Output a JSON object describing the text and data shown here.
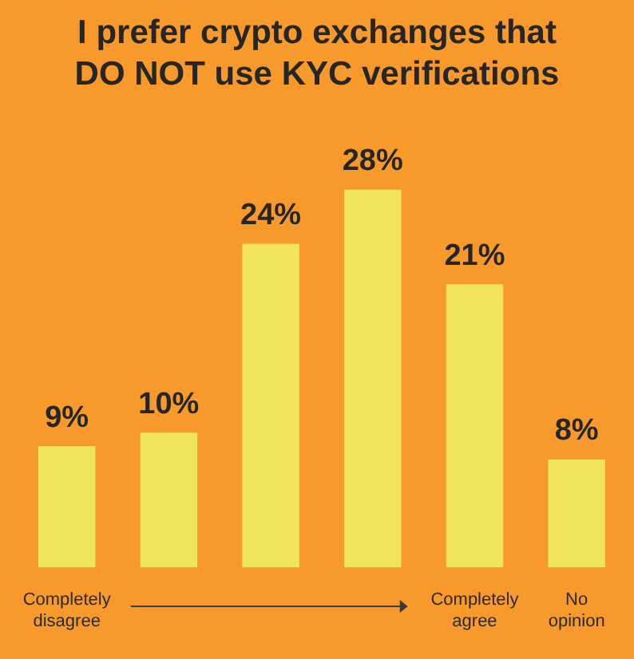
{
  "chart_data": {
    "type": "bar",
    "title": "I prefer crypto exchanges that DO NOT use KYC verifications",
    "categories": [
      "Completely disagree",
      null,
      null,
      null,
      "Completely agree",
      "No opinion"
    ],
    "values": [
      9,
      10,
      24,
      28,
      21,
      8
    ],
    "value_labels": [
      "9%",
      "10%",
      "24%",
      "28%",
      "21%",
      "8%"
    ],
    "color": "#f2e35c",
    "grid": false,
    "legend": false
  }
}
